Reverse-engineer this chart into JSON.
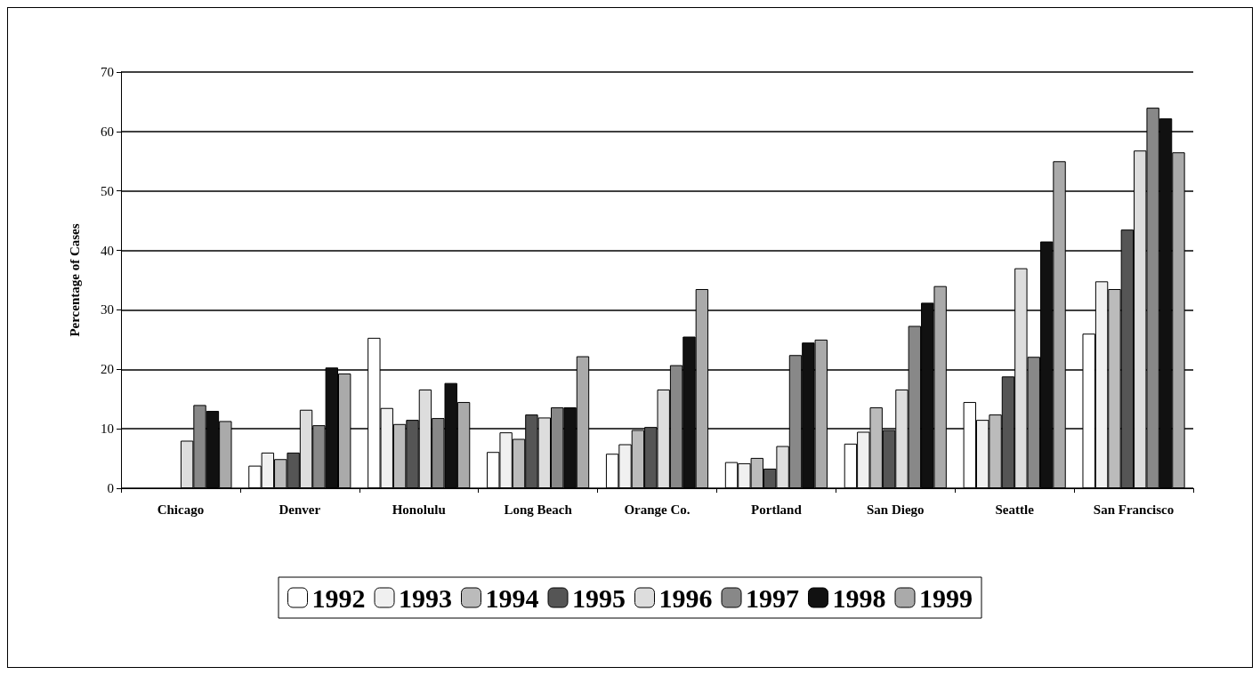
{
  "chart_data": {
    "type": "bar",
    "ylabel": "Percentage of Cases",
    "categories": [
      "Chicago",
      "Denver",
      "Honolulu",
      "Long Beach",
      "Orange Co.",
      "Portland",
      "San Diego",
      "Seattle",
      "San Francisco"
    ],
    "series": [
      {
        "name": "1992",
        "color": "#ffffff",
        "values": [
          null,
          3.8,
          25.3,
          6.1,
          5.8,
          4.4,
          7.5,
          14.5,
          26
        ]
      },
      {
        "name": "1993",
        "color": "#f0f0f0",
        "values": [
          null,
          6,
          13.5,
          9.4,
          7.4,
          4.2,
          9.5,
          11.5,
          34.8
        ]
      },
      {
        "name": "1994",
        "color": "#bbbbbb",
        "values": [
          null,
          4.9,
          10.8,
          8.3,
          9.8,
          5.1,
          13.6,
          12.4,
          33.5
        ]
      },
      {
        "name": "1995",
        "color": "#555555",
        "values": [
          null,
          6,
          11.5,
          12.4,
          10.3,
          3.3,
          9.8,
          18.8,
          43.5
        ]
      },
      {
        "name": "1996",
        "color": "#dddddd",
        "values": [
          8,
          13.2,
          16.6,
          11.9,
          16.6,
          7.1,
          16.6,
          37,
          56.8
        ]
      },
      {
        "name": "1997",
        "color": "#888888",
        "values": [
          14,
          10.6,
          11.8,
          13.6,
          20.7,
          22.4,
          27.3,
          22.1,
          64
        ]
      },
      {
        "name": "1998",
        "color": "#111111",
        "values": [
          13,
          20.3,
          17.7,
          13.6,
          25.5,
          24.5,
          31.2,
          41.5,
          62.2
        ]
      },
      {
        "name": "1999",
        "color": "#aaaaaa",
        "values": [
          11.3,
          19.3,
          14.5,
          22.2,
          33.5,
          25,
          34,
          55,
          56.5
        ]
      }
    ],
    "ylim": [
      0,
      70
    ],
    "yticks": [
      0,
      10,
      20,
      30,
      40,
      50,
      60,
      70
    ],
    "grid": "y",
    "legend": "bottom"
  }
}
